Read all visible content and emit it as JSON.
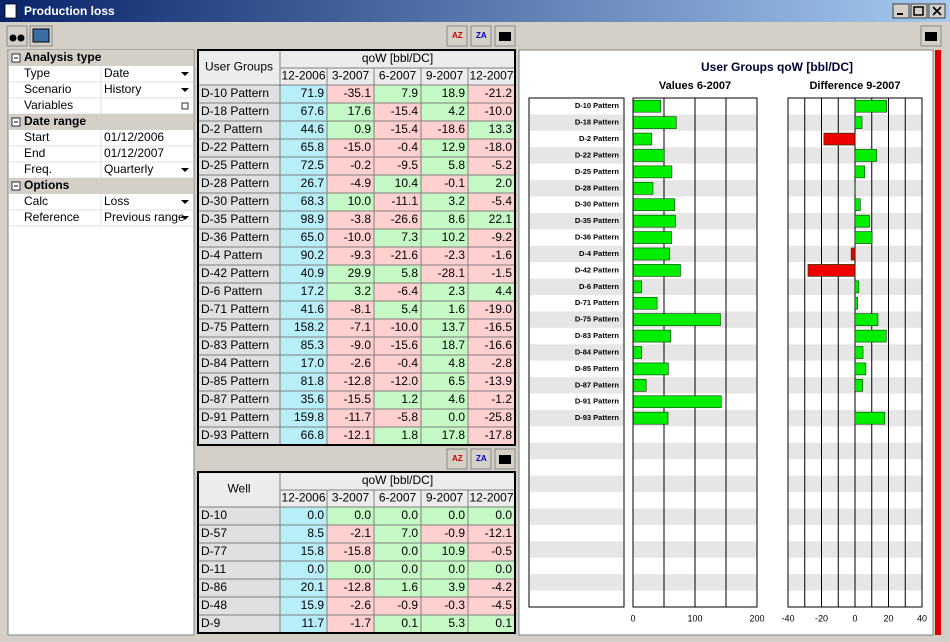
{
  "window": {
    "title": "Production loss"
  },
  "properties": {
    "sections": [
      {
        "title": "Analysis type",
        "rows": [
          {
            "label": "Type",
            "value": "Date",
            "dropdown": true
          },
          {
            "label": "Scenario",
            "value": "History",
            "dropdown": true
          },
          {
            "label": "Variables",
            "checkbox": true
          }
        ]
      },
      {
        "title": "Date range",
        "rows": [
          {
            "label": "Start",
            "value": "01/12/2006"
          },
          {
            "label": "End",
            "value": "01/12/2007"
          },
          {
            "label": "Freq.",
            "value": "Quarterly",
            "dropdown": true
          }
        ]
      },
      {
        "title": "Options",
        "rows": [
          {
            "label": "Calc",
            "value": "Loss",
            "dropdown": true
          },
          {
            "label": "Reference",
            "value": "Previous range",
            "dropdown": true
          }
        ]
      }
    ]
  },
  "groups_table": {
    "corner": "User Groups",
    "unit": "qoW [bbl/DC]",
    "columns": [
      "12-2006",
      "3-2007",
      "6-2007",
      "9-2007",
      "12-2007"
    ],
    "rows": [
      {
        "name": "D-10 Pattern",
        "cells": [
          "71.9",
          "-35.1",
          "7.9",
          "18.9",
          "-21.2"
        ]
      },
      {
        "name": "D-18 Pattern",
        "cells": [
          "67.6",
          "17.6",
          "-15.4",
          "4.2",
          "-10.0"
        ]
      },
      {
        "name": "D-2 Pattern",
        "cells": [
          "44.6",
          "0.9",
          "-15.4",
          "-18.6",
          "13.3"
        ]
      },
      {
        "name": "D-22 Pattern",
        "cells": [
          "65.8",
          "-15.0",
          "-0.4",
          "12.9",
          "-18.0"
        ]
      },
      {
        "name": "D-25 Pattern",
        "cells": [
          "72.5",
          "-0.2",
          "-9.5",
          "5.8",
          "-5.2"
        ]
      },
      {
        "name": "D-28 Pattern",
        "cells": [
          "26.7",
          "-4.9",
          "10.4",
          "-0.1",
          "2.0"
        ]
      },
      {
        "name": "D-30 Pattern",
        "cells": [
          "68.3",
          "10.0",
          "-11.1",
          "3.2",
          "-5.4"
        ]
      },
      {
        "name": "D-35 Pattern",
        "cells": [
          "98.9",
          "-3.8",
          "-26.6",
          "8.6",
          "22.1"
        ]
      },
      {
        "name": "D-36 Pattern",
        "cells": [
          "65.0",
          "-10.0",
          "7.3",
          "10.2",
          "-9.2"
        ]
      },
      {
        "name": "D-4 Pattern",
        "cells": [
          "90.2",
          "-9.3",
          "-21.6",
          "-2.3",
          "-1.6"
        ]
      },
      {
        "name": "D-42 Pattern",
        "cells": [
          "40.9",
          "29.9",
          "5.8",
          "-28.1",
          "-1.5"
        ]
      },
      {
        "name": "D-6 Pattern",
        "cells": [
          "17.2",
          "3.2",
          "-6.4",
          "2.3",
          "4.4"
        ]
      },
      {
        "name": "D-71 Pattern",
        "cells": [
          "41.6",
          "-8.1",
          "5.4",
          "1.6",
          "-19.0"
        ]
      },
      {
        "name": "D-75 Pattern",
        "cells": [
          "158.2",
          "-7.1",
          "-10.0",
          "13.7",
          "-16.5"
        ]
      },
      {
        "name": "D-83 Pattern",
        "cells": [
          "85.3",
          "-9.0",
          "-15.6",
          "18.7",
          "-16.6"
        ]
      },
      {
        "name": "D-84 Pattern",
        "cells": [
          "17.0",
          "-2.6",
          "-0.4",
          "4.8",
          "-2.8"
        ]
      },
      {
        "name": "D-85 Pattern",
        "cells": [
          "81.8",
          "-12.8",
          "-12.0",
          "6.5",
          "-13.9"
        ]
      },
      {
        "name": "D-87 Pattern",
        "cells": [
          "35.6",
          "-15.5",
          "1.2",
          "4.6",
          "-1.2"
        ]
      },
      {
        "name": "D-91 Pattern",
        "cells": [
          "159.8",
          "-11.7",
          "-5.8",
          "0.0",
          "-25.8"
        ]
      },
      {
        "name": "D-93 Pattern",
        "cells": [
          "66.8",
          "-12.1",
          "1.8",
          "17.8",
          "-17.8"
        ]
      }
    ]
  },
  "wells_table": {
    "corner": "Well",
    "unit": "qoW [bbl/DC]",
    "columns": [
      "12-2006",
      "3-2007",
      "6-2007",
      "9-2007",
      "12-2007"
    ],
    "rows": [
      {
        "name": "D-10",
        "cells": [
          "0.0",
          "0.0",
          "0.0",
          "0.0",
          "0.0"
        ]
      },
      {
        "name": "D-57",
        "cells": [
          "8.5",
          "-2.1",
          "7.0",
          "-0.9",
          "-12.1"
        ]
      },
      {
        "name": "D-77",
        "cells": [
          "15.8",
          "-15.8",
          "0.0",
          "10.9",
          "-0.5"
        ]
      },
      {
        "name": "D-11",
        "cells": [
          "0.0",
          "0.0",
          "0.0",
          "0.0",
          "0.0"
        ]
      },
      {
        "name": "D-86",
        "cells": [
          "20.1",
          "-12.8",
          "1.6",
          "3.9",
          "-4.2"
        ]
      },
      {
        "name": "D-48",
        "cells": [
          "15.9",
          "-2.6",
          "-0.9",
          "-0.3",
          "-4.5"
        ]
      },
      {
        "name": "D-9",
        "cells": [
          "11.7",
          "-1.7",
          "0.1",
          "5.3",
          "0.1"
        ]
      }
    ]
  },
  "chart_panel": {
    "title": "User Groups qoW [bbl/DC]"
  },
  "chart_data": [
    {
      "type": "bar",
      "horizontal": true,
      "title": "Values 6-2007",
      "categories": [
        "D-10 Pattern",
        "D-18 Pattern",
        "D-2 Pattern",
        "D-22 Pattern",
        "D-25 Pattern",
        "D-28 Pattern",
        "D-30 Pattern",
        "D-35 Pattern",
        "D-36 Pattern",
        "D-4 Pattern",
        "D-42 Pattern",
        "D-6 Pattern",
        "D-71 Pattern",
        "D-75 Pattern",
        "D-83 Pattern",
        "D-84 Pattern",
        "D-85 Pattern",
        "D-87 Pattern",
        "D-91 Pattern",
        "D-93 Pattern"
      ],
      "values": [
        44.7,
        69.8,
        30.1,
        50.4,
        62.8,
        32.2,
        67.2,
        68.5,
        62.3,
        59.3,
        76.6,
        14.0,
        38.9,
        141.1,
        60.7,
        14.0,
        57.0,
        21.3,
        142.3,
        56.5
      ],
      "color": "#00ee00",
      "negative_color": "#ee0000",
      "xlim": [
        0,
        200
      ],
      "xticks": [
        0,
        100,
        200
      ],
      "grid": [
        0,
        50,
        100,
        150,
        200
      ]
    },
    {
      "type": "bar",
      "horizontal": true,
      "title": "Difference 9-2007",
      "values": [
        18.9,
        4.2,
        -18.6,
        12.9,
        5.8,
        -0.1,
        3.2,
        8.6,
        10.2,
        -2.3,
        -28.1,
        2.3,
        1.6,
        13.7,
        18.7,
        4.8,
        6.5,
        4.6,
        0.0,
        17.8
      ],
      "color": "#00ee00",
      "negative_color": "#ee0000",
      "xlim": [
        -40,
        40
      ],
      "xticks": [
        -40,
        -20,
        0,
        20,
        40
      ],
      "grid": [
        -40,
        -30,
        -20,
        -10,
        0,
        10,
        20,
        30,
        40
      ]
    }
  ]
}
